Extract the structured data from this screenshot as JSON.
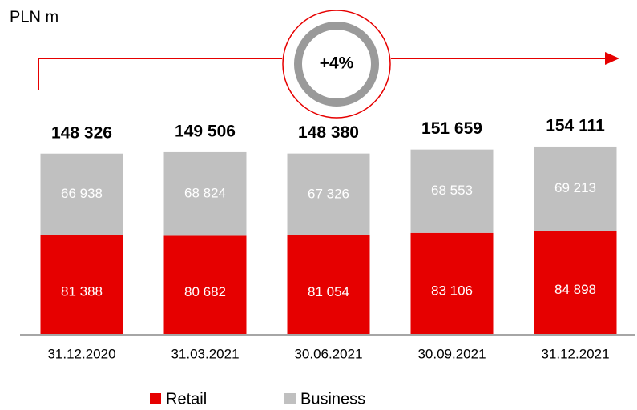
{
  "chart_data": {
    "type": "stacked_bar",
    "unit_label": "PLN m",
    "annotation": "+4%",
    "categories": [
      "31.12.2020",
      "31.03.2021",
      "30.06.2021",
      "30.09.2021",
      "31.12.2021"
    ],
    "series": [
      {
        "name": "Retail",
        "color": "#e60000",
        "values": [
          81388,
          80682,
          81054,
          83106,
          84898
        ],
        "value_labels": [
          "81 388",
          "80 682",
          "81 054",
          "83 106",
          "84 898"
        ]
      },
      {
        "name": "Business",
        "color": "#c0c0c0",
        "values": [
          66938,
          68824,
          67326,
          68553,
          69213
        ],
        "value_labels": [
          "66 938",
          "68 824",
          "67 326",
          "68 553",
          "69 213"
        ]
      }
    ],
    "totals": [
      148326,
      149506,
      148380,
      151659,
      154111
    ],
    "total_labels": [
      "148 326",
      "149 506",
      "148 380",
      "151 659",
      "154 111"
    ],
    "ylim": [
      0,
      160000
    ]
  }
}
